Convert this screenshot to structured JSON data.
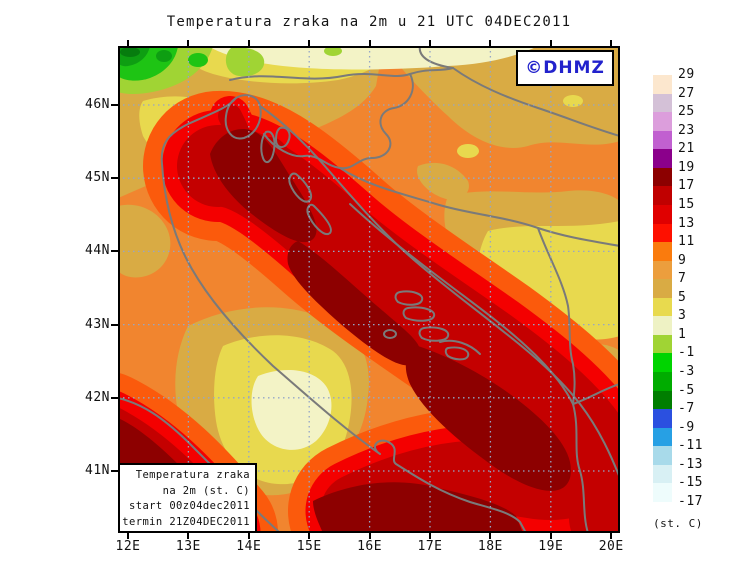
{
  "title": "Temperatura zraka na 2m u 21 UTC 04DEC2011",
  "copyright": "©DHMZ",
  "map": {
    "x_axis_labels": [
      "12E",
      "13E",
      "14E",
      "15E",
      "16E",
      "17E",
      "18E",
      "19E",
      "20E"
    ],
    "y_axis_labels": [
      "46N",
      "45N",
      "44N",
      "43N",
      "42N",
      "41N"
    ]
  },
  "info_box": {
    "lines": [
      "Temperatura zraka",
      "na 2m (st. C)",
      "start 00z04dec2011",
      "termin 21Z04DEC2011"
    ]
  },
  "colorbar": {
    "unit_label": "(st. C)",
    "levels": [
      29,
      27,
      25,
      23,
      21,
      19,
      17,
      15,
      13,
      11,
      9,
      7,
      5,
      3,
      1,
      -1,
      -3,
      -5,
      -7,
      -9,
      -11,
      -13,
      -15,
      -17
    ],
    "colors": [
      "#fce7ce",
      "#d4c1d7",
      "#dc9edc",
      "#c160d0",
      "#8b008b",
      "#8c0000",
      "#c00000",
      "#e00000",
      "#fe1000",
      "#fa7b0d",
      "#ec9e3d",
      "#d9ab44",
      "#e8da4e",
      "#eef2c4",
      "#a0d434",
      "#00d400",
      "#00ac00",
      "#007e00",
      "#2b50e0",
      "#27a0e4",
      "#a8daea",
      "#d8f0f4",
      "#eefcfc"
    ]
  },
  "chart_data": {
    "type": "heatmap",
    "title": "Temperatura zraka na 2m u 21 UTC 04DEC2011",
    "x_ticks": [
      "12E",
      "13E",
      "14E",
      "15E",
      "16E",
      "17E",
      "18E",
      "19E",
      "20E"
    ],
    "y_ticks": [
      "46N",
      "45N",
      "44N",
      "43N",
      "42N",
      "41N"
    ],
    "unit": "st. C",
    "colorbar_levels": [
      29,
      27,
      25,
      23,
      21,
      19,
      17,
      15,
      13,
      11,
      9,
      7,
      5,
      3,
      1,
      -1,
      -3,
      -5,
      -7,
      -9,
      -11,
      -13,
      -15,
      -17
    ],
    "colorbar_colors": [
      "#fce7ce",
      "#d4c1d7",
      "#dc9edc",
      "#c160d0",
      "#8b008b",
      "#8c0000",
      "#c00000",
      "#e00000",
      "#fe1000",
      "#fa7b0d",
      "#ec9e3d",
      "#d9ab44",
      "#e8da4e",
      "#eef2c4",
      "#a0d434",
      "#00d400",
      "#00ac00",
      "#007e00",
      "#2b50e0",
      "#27a0e4",
      "#a8daea",
      "#d8f0f4",
      "#eefcfc"
    ],
    "summary": "Filled 2 m air-temperature contours over the Adriatic region: sea 15-19 (dark red/maroon), coastal band 11-15 (red/orange-red), inland Croatia/Bosnia 5-11 (orange/gold/yellow), Alps in NW below 0 (greens)."
  }
}
